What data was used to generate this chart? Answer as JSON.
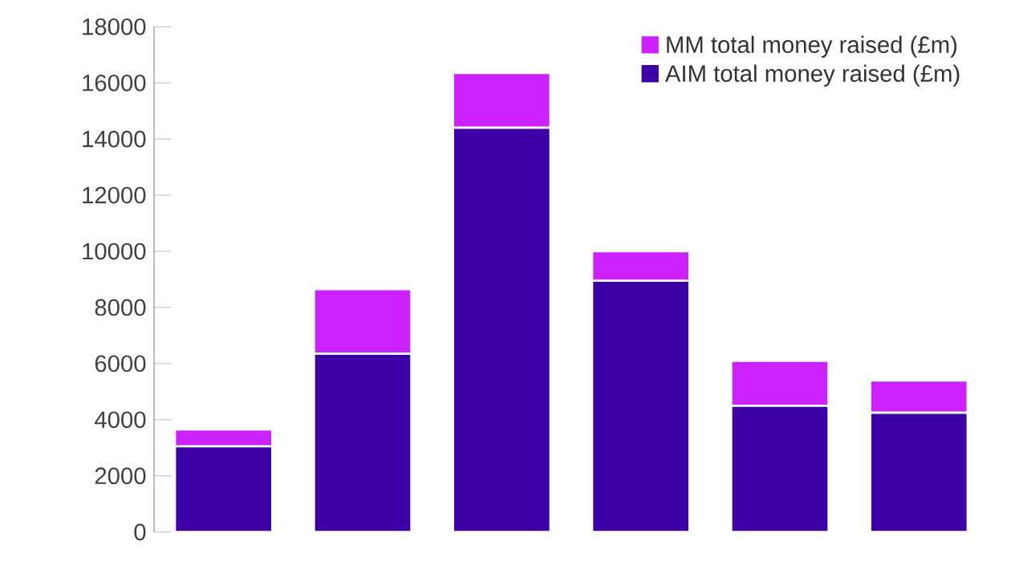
{
  "chart_data": {
    "type": "bar",
    "stacked": true,
    "categories": [
      null,
      null,
      null,
      null,
      null,
      null
    ],
    "series": [
      {
        "name": "AIM total money raised (£m)",
        "color": "#3d00a6",
        "values": [
          3050,
          6350,
          14400,
          8950,
          4500,
          4250
        ]
      },
      {
        "name": "MM total money raised (£m)",
        "color": "#cc22ff",
        "values": [
          600,
          2300,
          1950,
          1050,
          1600,
          1150
        ]
      }
    ],
    "ylim": [
      0,
      18000
    ],
    "yticks": [
      0,
      2000,
      4000,
      6000,
      8000,
      10000,
      12000,
      14000,
      16000,
      18000
    ],
    "legend": "top right"
  }
}
